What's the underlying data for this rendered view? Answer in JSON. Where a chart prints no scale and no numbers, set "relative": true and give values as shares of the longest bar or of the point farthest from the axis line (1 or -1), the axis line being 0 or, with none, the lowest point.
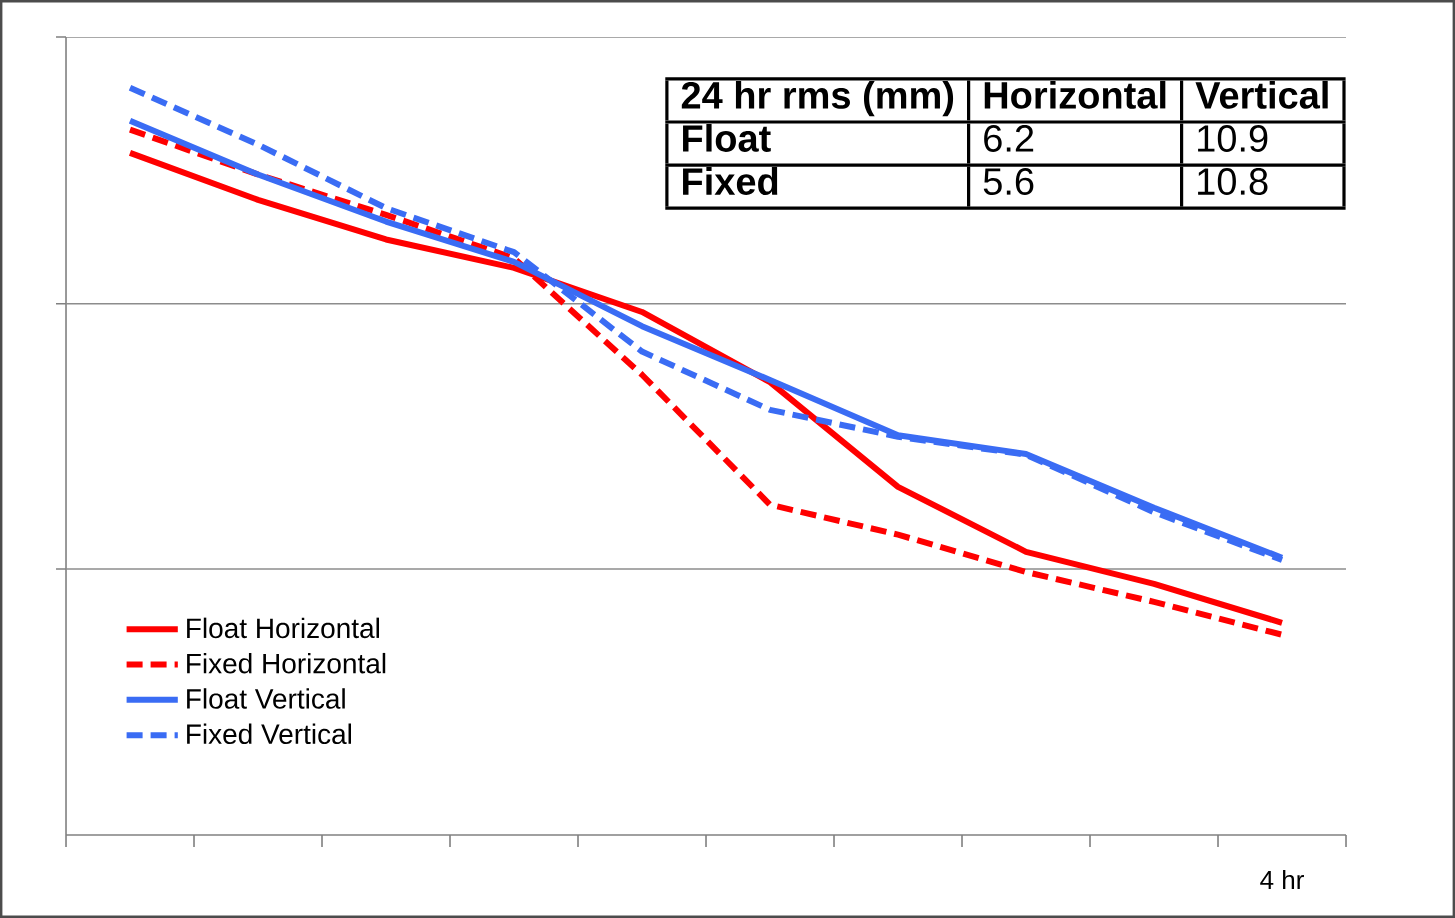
{
  "chart_data": {
    "type": "line",
    "relative": true,
    "legend": "bottom left",
    "ref_lines": [
      {
        "axis": "y",
        "value": 0.356,
        "color": "#8c8c8c"
      },
      {
        "axis": "y",
        "value": 0.711,
        "color": "#8c8c8c"
      }
    ],
    "categories": [
      null,
      null,
      null,
      null,
      null,
      null,
      null,
      null,
      null,
      null
    ],
    "xlabel": "4 hr",
    "series": [
      {
        "name": "Float Horizontal",
        "color": "#ff0000",
        "line_style": "solid",
        "values": [
          0.913,
          0.85,
          0.797,
          0.759,
          0.7,
          0.606,
          0.466,
          0.379,
          0.336,
          0.284
        ]
      },
      {
        "name": "Fixed Horizontal",
        "color": "#ff0000",
        "line_style": "dashed",
        "values": [
          0.944,
          0.884,
          0.83,
          0.772,
          0.616,
          0.442,
          0.402,
          0.352,
          0.312,
          0.268
        ]
      },
      {
        "name": "Float Vertical",
        "color": "#3a6cf4",
        "line_style": "solid",
        "values": [
          0.956,
          0.884,
          0.821,
          0.767,
          0.681,
          0.609,
          0.535,
          0.51,
          0.438,
          0.371
        ]
      },
      {
        "name": "Fixed Vertical",
        "color": "#3a6cf4",
        "line_style": "dashed",
        "values": [
          1.0,
          0.924,
          0.839,
          0.78,
          0.647,
          0.569,
          0.533,
          0.509,
          0.432,
          0.368
        ]
      }
    ],
    "annotations": [
      "24 hr rms (mm)",
      "Horizontal",
      "Vertical",
      "Float",
      "6.2",
      "10.9",
      "Fixed",
      "5.6",
      "10.8"
    ]
  }
}
